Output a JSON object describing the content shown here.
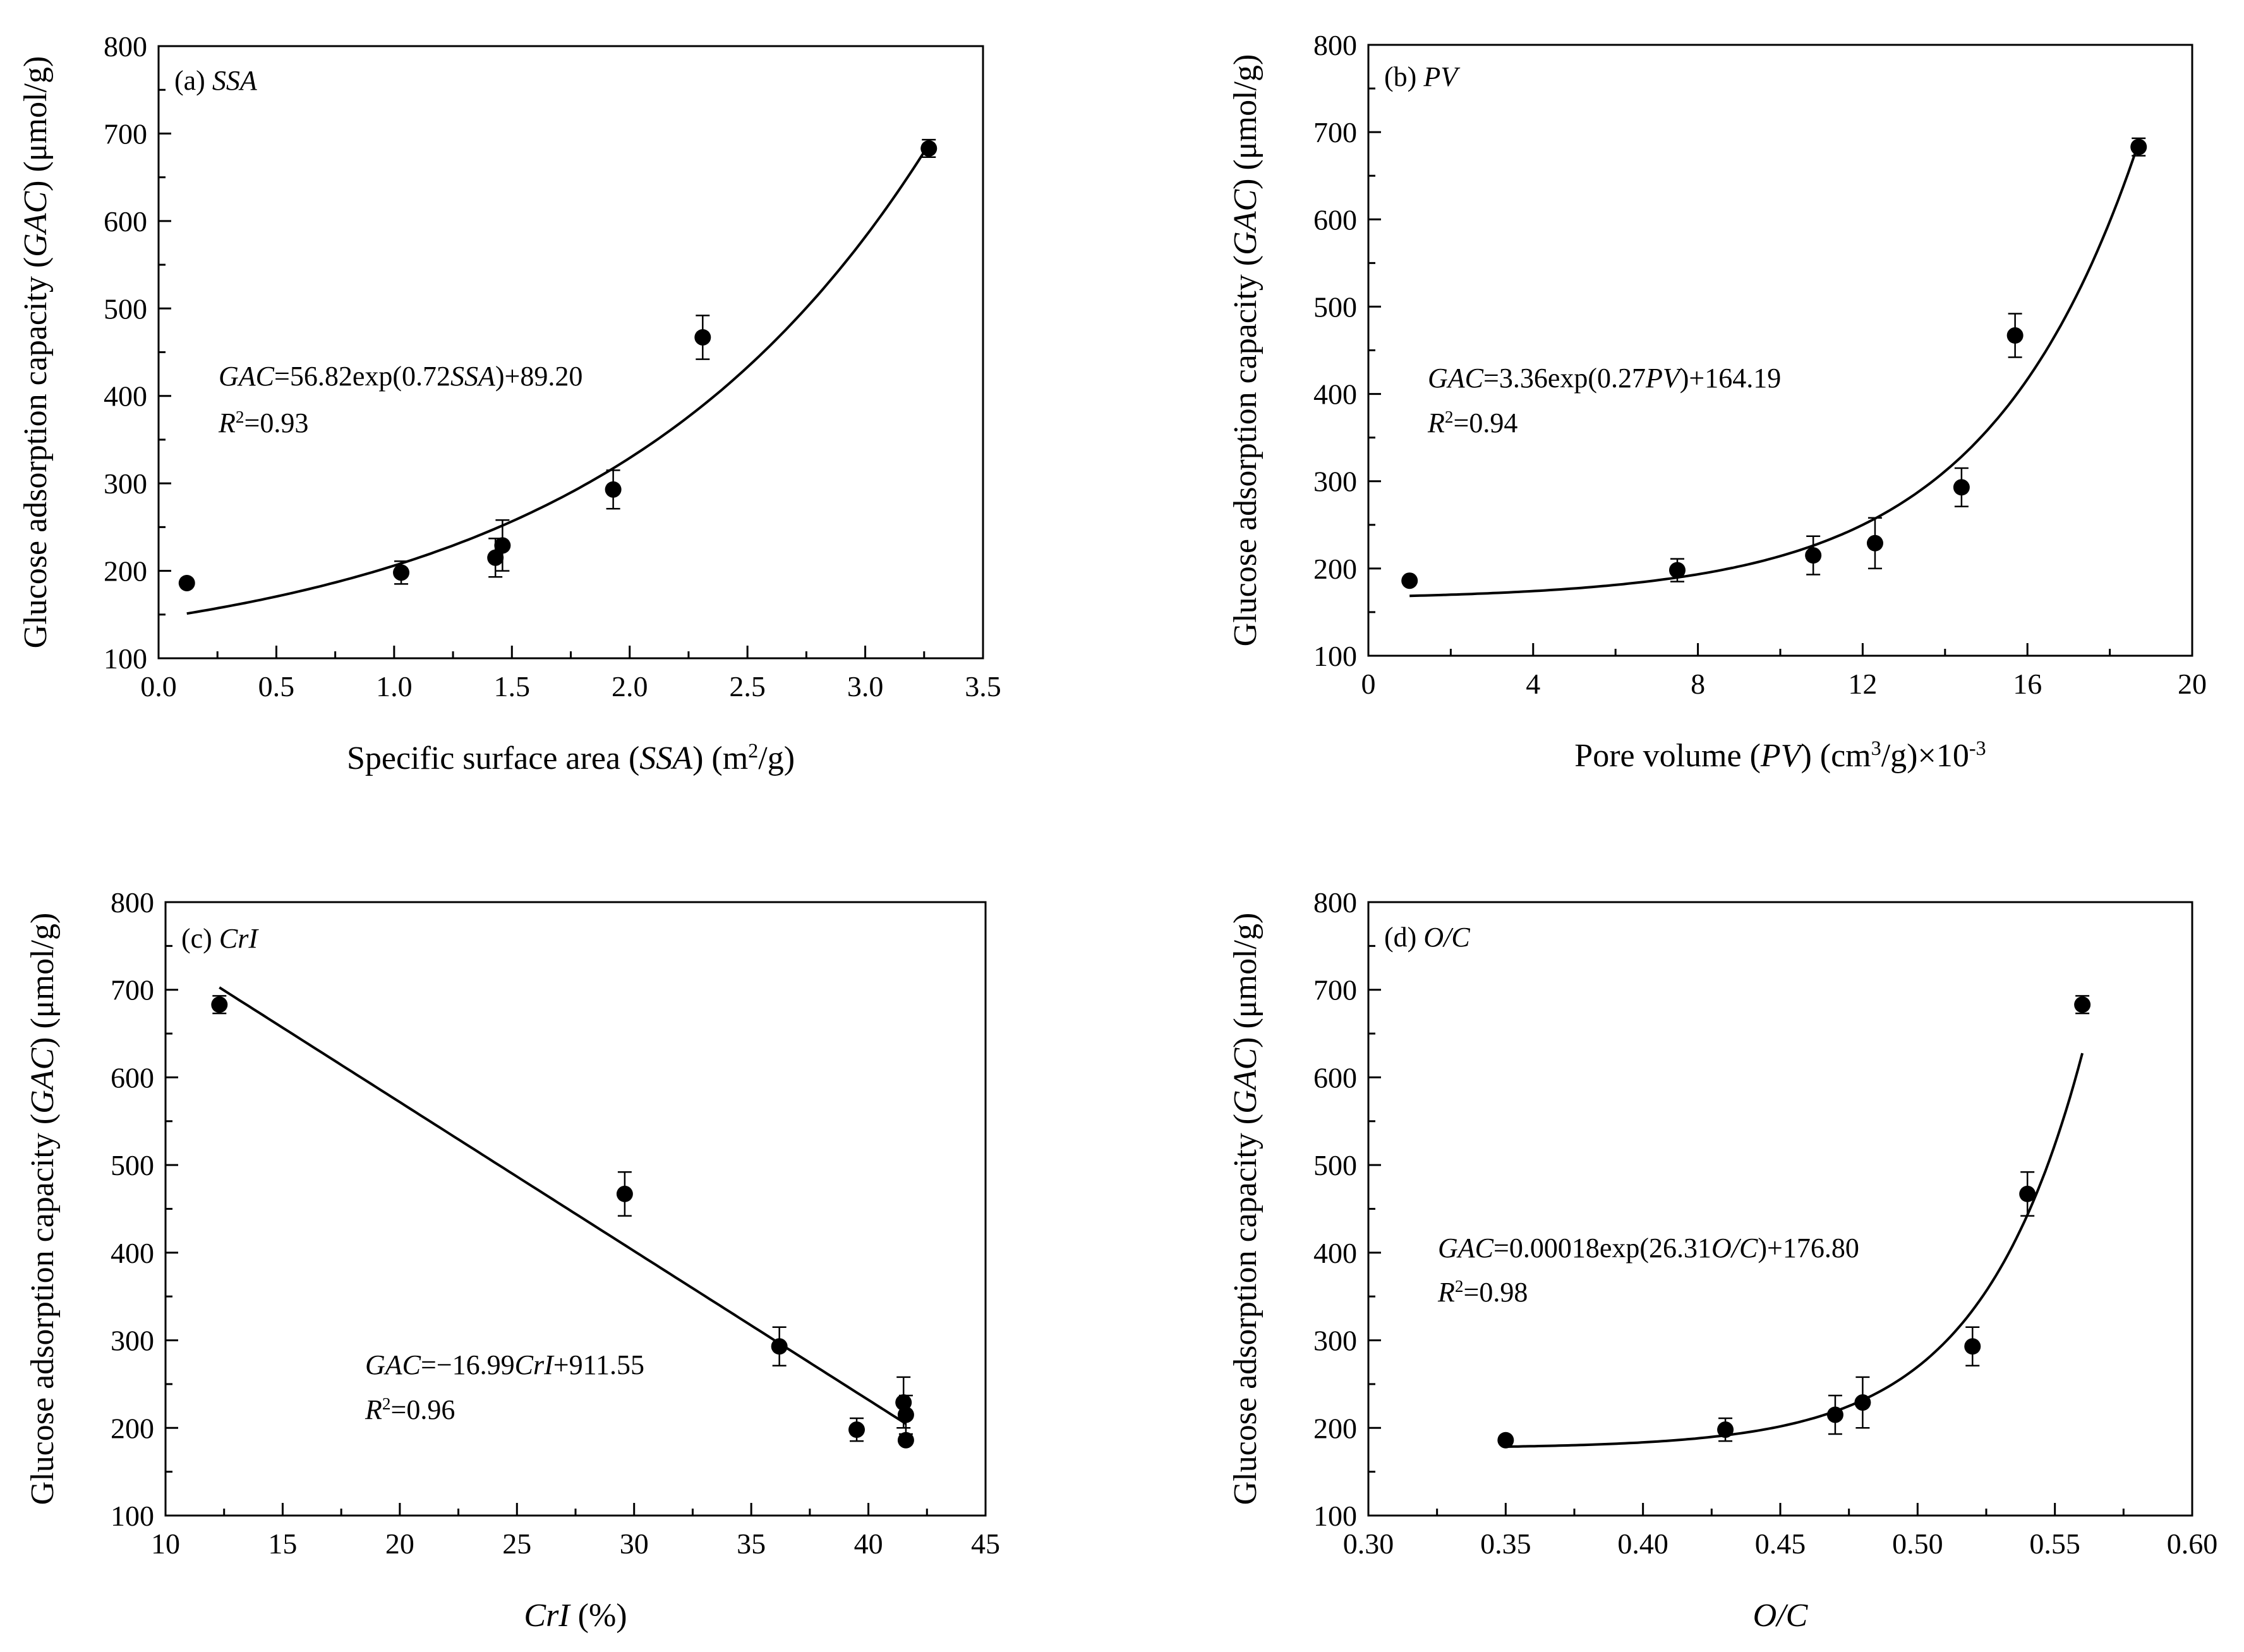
{
  "figure": {
    "y_axis_label": {
      "prefix": "Glucose adsorption capacity (",
      "italic": "GAC",
      "suffix": ") (μmol/g)"
    }
  },
  "chart_data": [
    {
      "id": "a",
      "type": "scatter",
      "panel_label": {
        "prefix": "(a) ",
        "italic": "SSA"
      },
      "xlabel": [
        {
          "t": "Specific surface area ("
        },
        {
          "t": "SSA",
          "i": true
        },
        {
          "t": ") (m"
        },
        {
          "t": "2",
          "sup": true
        },
        {
          "t": "/g)"
        }
      ],
      "xlim": [
        0.0,
        3.5
      ],
      "xticks": [
        0.0,
        0.5,
        1.0,
        1.5,
        2.0,
        2.5,
        3.0,
        3.5
      ],
      "xtick_labels": [
        "0.0",
        "0.5",
        "1.0",
        "1.5",
        "2.0",
        "2.5",
        "3.0",
        "3.5"
      ],
      "xminor": 0.25,
      "ylim": [
        100,
        800
      ],
      "yticks": [
        100,
        200,
        300,
        400,
        500,
        600,
        700,
        800
      ],
      "ytick_labels": [
        "100",
        "200",
        "300",
        "400",
        "500",
        "600",
        "700",
        "800"
      ],
      "yminor": 50,
      "points": [
        {
          "x": 0.12,
          "y": 186,
          "err": 0
        },
        {
          "x": 1.03,
          "y": 198,
          "err": 13
        },
        {
          "x": 1.43,
          "y": 215,
          "err": 22
        },
        {
          "x": 1.46,
          "y": 229,
          "err": 29
        },
        {
          "x": 1.93,
          "y": 293,
          "err": 22
        },
        {
          "x": 2.31,
          "y": 467,
          "err": 25
        },
        {
          "x": 3.27,
          "y": 683,
          "err": 10
        }
      ],
      "fit": {
        "model": "exp",
        "a": 56.82,
        "b": 0.72,
        "c": 89.2,
        "x_range": [
          0.12,
          3.27
        ]
      },
      "equation": [
        {
          "t": "GAC",
          "i": true
        },
        {
          "t": "=56.82exp(0.72"
        },
        {
          "t": "SSA",
          "i": true
        },
        {
          "t": ")+89.20"
        }
      ],
      "r2": [
        {
          "t": "R",
          "i": true
        },
        {
          "t": "2",
          "sup": true
        },
        {
          "t": "=0.93"
        }
      ]
    },
    {
      "id": "b",
      "type": "scatter",
      "panel_label": {
        "prefix": "(b) ",
        "italic": "PV"
      },
      "xlabel": [
        {
          "t": "Pore volume ("
        },
        {
          "t": "PV",
          "i": true
        },
        {
          "t": ") (cm"
        },
        {
          "t": "3",
          "sup": true
        },
        {
          "t": "/g)×10"
        },
        {
          "t": "-3",
          "sup": true
        }
      ],
      "xlim": [
        0,
        20
      ],
      "xticks": [
        0,
        4,
        8,
        12,
        16,
        20
      ],
      "xtick_labels": [
        "0",
        "4",
        "8",
        "12",
        "16",
        "20"
      ],
      "xminor": 2,
      "ylim": [
        100,
        800
      ],
      "yticks": [
        100,
        200,
        300,
        400,
        500,
        600,
        700,
        800
      ],
      "ytick_labels": [
        "100",
        "200",
        "300",
        "400",
        "500",
        "600",
        "700",
        "800"
      ],
      "yminor": 50,
      "points": [
        {
          "x": 1.0,
          "y": 186,
          "err": 0
        },
        {
          "x": 7.5,
          "y": 198,
          "err": 13
        },
        {
          "x": 10.8,
          "y": 215,
          "err": 22
        },
        {
          "x": 12.3,
          "y": 229,
          "err": 29
        },
        {
          "x": 14.4,
          "y": 293,
          "err": 22
        },
        {
          "x": 15.7,
          "y": 467,
          "err": 25
        },
        {
          "x": 18.7,
          "y": 683,
          "err": 10
        }
      ],
      "fit": {
        "model": "exp",
        "a": 3.36,
        "b": 0.27,
        "c": 164.19,
        "x_range": [
          1.0,
          18.7
        ]
      },
      "equation": [
        {
          "t": "GAC",
          "i": true
        },
        {
          "t": "=3.36exp(0.27"
        },
        {
          "t": "PV",
          "i": true
        },
        {
          "t": ")+164.19"
        }
      ],
      "r2": [
        {
          "t": "R",
          "i": true
        },
        {
          "t": "2",
          "sup": true
        },
        {
          "t": "=0.94"
        }
      ]
    },
    {
      "id": "c",
      "type": "scatter",
      "panel_label": {
        "prefix": "(c) ",
        "italic": "CrI"
      },
      "xlabel": [
        {
          "t": "CrI",
          "i": true
        },
        {
          "t": " (%)"
        }
      ],
      "xlim": [
        10,
        45
      ],
      "xticks": [
        10,
        15,
        20,
        25,
        30,
        35,
        40,
        45
      ],
      "xtick_labels": [
        "10",
        "15",
        "20",
        "25",
        "30",
        "35",
        "40",
        "45"
      ],
      "xminor": 2.5,
      "ylim": [
        100,
        800
      ],
      "yticks": [
        100,
        200,
        300,
        400,
        500,
        600,
        700,
        800
      ],
      "ytick_labels": [
        "100",
        "200",
        "300",
        "400",
        "500",
        "600",
        "700",
        "800"
      ],
      "yminor": 50,
      "points": [
        {
          "x": 12.3,
          "y": 683,
          "err": 10
        },
        {
          "x": 29.6,
          "y": 467,
          "err": 25
        },
        {
          "x": 36.2,
          "y": 293,
          "err": 22
        },
        {
          "x": 39.5,
          "y": 198,
          "err": 13
        },
        {
          "x": 41.5,
          "y": 229,
          "err": 29
        },
        {
          "x": 41.6,
          "y": 215,
          "err": 22
        },
        {
          "x": 41.6,
          "y": 186,
          "err": 0
        }
      ],
      "fit": {
        "model": "linear",
        "a": -16.99,
        "b": 911.55,
        "x_range": [
          12.3,
          41.6
        ]
      },
      "equation": [
        {
          "t": "GAC",
          "i": true
        },
        {
          "t": "=−16.99"
        },
        {
          "t": "CrI",
          "i": true
        },
        {
          "t": "+911.55"
        }
      ],
      "r2": [
        {
          "t": "R",
          "i": true
        },
        {
          "t": "2",
          "sup": true
        },
        {
          "t": "=0.96"
        }
      ]
    },
    {
      "id": "d",
      "type": "scatter",
      "panel_label": {
        "prefix": "(d) ",
        "italic": "O/C"
      },
      "xlabel": [
        {
          "t": "O/C",
          "i": true
        }
      ],
      "xlim": [
        0.3,
        0.6
      ],
      "xticks": [
        0.3,
        0.35,
        0.4,
        0.45,
        0.5,
        0.55,
        0.6
      ],
      "xtick_labels": [
        "0.30",
        "0.35",
        "0.40",
        "0.45",
        "0.50",
        "0.55",
        "0.60"
      ],
      "xminor": 0.025,
      "ylim": [
        100,
        800
      ],
      "yticks": [
        100,
        200,
        300,
        400,
        500,
        600,
        700,
        800
      ],
      "ytick_labels": [
        "100",
        "200",
        "300",
        "400",
        "500",
        "600",
        "700",
        "800"
      ],
      "yminor": 50,
      "points": [
        {
          "x": 0.35,
          "y": 186,
          "err": 0
        },
        {
          "x": 0.43,
          "y": 198,
          "err": 13
        },
        {
          "x": 0.47,
          "y": 215,
          "err": 22
        },
        {
          "x": 0.48,
          "y": 229,
          "err": 29
        },
        {
          "x": 0.52,
          "y": 293,
          "err": 22
        },
        {
          "x": 0.54,
          "y": 467,
          "err": 25
        },
        {
          "x": 0.56,
          "y": 683,
          "err": 10
        }
      ],
      "fit": {
        "model": "exp",
        "a": 0.00018,
        "b": 26.31,
        "c": 176.8,
        "x_range": [
          0.35,
          0.56
        ]
      },
      "equation": [
        {
          "t": "GAC",
          "i": true
        },
        {
          "t": "=0.00018exp(26.31"
        },
        {
          "t": "O/C",
          "i": true
        },
        {
          "t": ")+176.80"
        }
      ],
      "r2": [
        {
          "t": "R",
          "i": true
        },
        {
          "t": "2",
          "sup": true
        },
        {
          "t": "=0.98"
        }
      ]
    }
  ]
}
